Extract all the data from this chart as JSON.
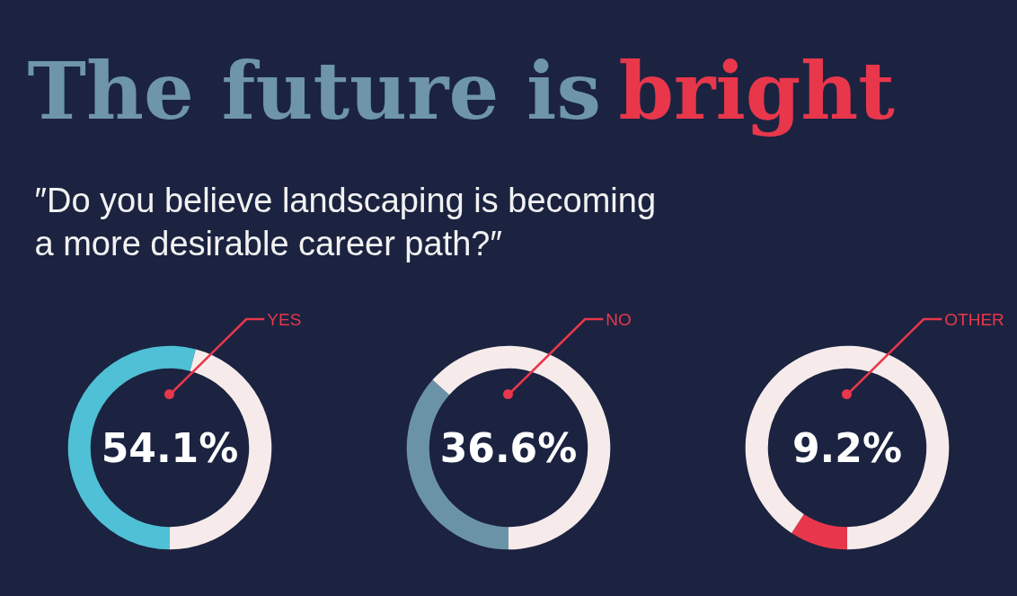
{
  "chart_data": [
    {
      "type": "other",
      "title": "The future is bright",
      "subtitle": "″Do you believe landscaping is becoming\na more desirable career path?″"
    },
    {
      "type": "donut",
      "title": "YES",
      "categories": [
        null,
        null
      ],
      "values": [
        54.1,
        45.9
      ],
      "colors": [
        "#4fc0d5",
        "#f6ebea"
      ],
      "annotations": [
        "54.1%"
      ]
    },
    {
      "type": "donut",
      "title": "NO",
      "categories": [
        null,
        null
      ],
      "values": [
        36.6,
        63.4
      ],
      "colors": [
        "#6b93a7",
        "#f6ebea"
      ],
      "annotations": [
        "36.6%"
      ]
    },
    {
      "type": "donut",
      "title": "OTHER",
      "categories": [
        null,
        null
      ],
      "values": [
        9.2,
        90.8
      ],
      "colors": [
        "#e8374b",
        "#f6ebea"
      ],
      "annotations": [
        "9.2%"
      ]
    }
  ]
}
